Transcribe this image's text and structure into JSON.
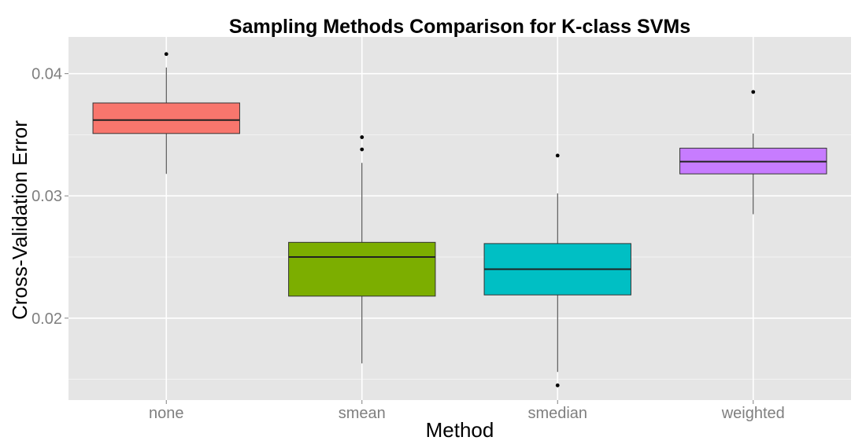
{
  "chart_data": {
    "type": "box",
    "title": "Sampling Methods Comparison for K-class SVMs",
    "xlabel": "Method",
    "ylabel": "Cross-Validation Error",
    "categories": [
      "none",
      "smean",
      "smedian",
      "weighted"
    ],
    "ylim": [
      0.0133,
      0.043
    ],
    "yticks": [
      0.02,
      0.03,
      0.04
    ],
    "ytick_labels": [
      "0.02",
      "0.03",
      "0.04"
    ],
    "grid": true,
    "legend": "none",
    "boxes": [
      {
        "category": "none",
        "whisker_low": 0.0318,
        "q1": 0.0351,
        "median": 0.0362,
        "q3": 0.0376,
        "whisker_high": 0.0405,
        "outliers": [
          0.0416
        ],
        "color": "#F8766D"
      },
      {
        "category": "smean",
        "whisker_low": 0.0163,
        "q1": 0.0218,
        "median": 0.025,
        "q3": 0.0262,
        "whisker_high": 0.0327,
        "outliers": [
          0.0338,
          0.0348
        ],
        "color": "#7CAE00"
      },
      {
        "category": "smedian",
        "whisker_low": 0.0156,
        "q1": 0.0219,
        "median": 0.024,
        "q3": 0.0261,
        "whisker_high": 0.0302,
        "outliers": [
          0.0145,
          0.0333
        ],
        "color": "#00BFC4"
      },
      {
        "category": "weighted",
        "whisker_low": 0.0285,
        "q1": 0.0318,
        "median": 0.0328,
        "q3": 0.0339,
        "whisker_high": 0.0351,
        "outliers": [
          0.0385
        ],
        "color": "#C77CFF"
      }
    ],
    "panel_color": "#E5E5E5",
    "grid_color": "#FFFFFF"
  }
}
